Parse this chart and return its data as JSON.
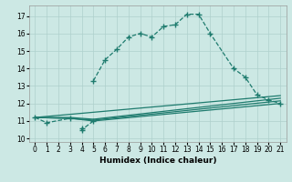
{
  "xlabel": "Humidex (Indice chaleur)",
  "xlim": [
    -0.5,
    21.5
  ],
  "ylim": [
    9.8,
    17.6
  ],
  "yticks": [
    10,
    11,
    12,
    13,
    14,
    15,
    16,
    17
  ],
  "xticks": [
    0,
    1,
    2,
    3,
    4,
    5,
    6,
    7,
    8,
    9,
    10,
    11,
    12,
    13,
    14,
    15,
    16,
    17,
    18,
    19,
    20,
    21
  ],
  "bg_color": "#cce8e4",
  "line_color": "#1e7b6e",
  "grid_color": "#aed0cc",
  "main_segments": [
    {
      "x": [
        0,
        1,
        3
      ],
      "y": [
        11.2,
        10.9,
        11.15
      ]
    },
    {
      "x": [
        4,
        4,
        5
      ],
      "y": [
        10.6,
        10.5,
        11.0
      ]
    },
    {
      "x": [
        5,
        6,
        7,
        8,
        9,
        10,
        11,
        12,
        13,
        14,
        15,
        17,
        18,
        19,
        20,
        21
      ],
      "y": [
        13.3,
        14.5,
        15.1,
        15.8,
        16.0,
        15.8,
        16.4,
        16.5,
        17.1,
        17.1,
        16.0,
        14.0,
        13.5,
        12.5,
        12.2,
        12.0
      ]
    }
  ],
  "flat_lines": [
    {
      "x": [
        0,
        3,
        5,
        21
      ],
      "y": [
        11.2,
        11.15,
        11.0,
        12.0
      ]
    },
    {
      "x": [
        0,
        3,
        5,
        21
      ],
      "y": [
        11.2,
        11.15,
        11.05,
        12.15
      ]
    },
    {
      "x": [
        0,
        3,
        5,
        21
      ],
      "y": [
        11.2,
        11.2,
        11.1,
        12.3
      ]
    },
    {
      "x": [
        0,
        21
      ],
      "y": [
        11.2,
        12.45
      ]
    }
  ]
}
